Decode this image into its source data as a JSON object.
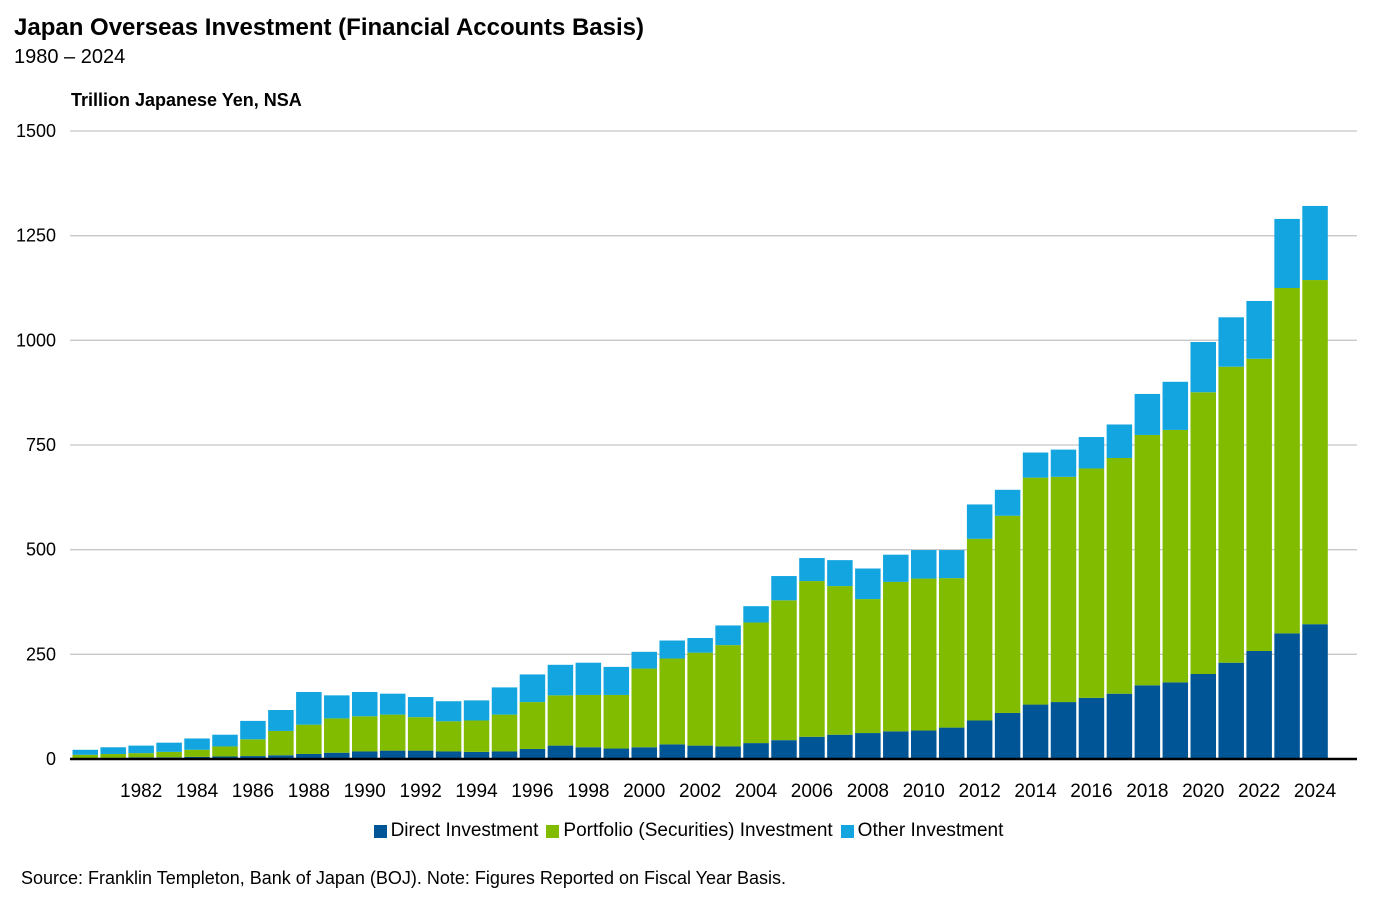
{
  "title": "Japan Overseas Investment (Financial Accounts Basis)",
  "subtitle": "1980 – 2024",
  "source": "Source: Franklin Templeton, Bank of Japan (BOJ). Note: Figures Reported on Fiscal Year Basis.",
  "colors": {
    "direct": "#005596",
    "portfolio": "#82BC00",
    "other": "#12A5DF"
  },
  "chart_data": {
    "type": "bar",
    "stacked": true,
    "title": "Japan Overseas Investment (Financial Accounts Basis)",
    "ylabel": "Trillion Japanese Yen, NSA",
    "xlabel": "",
    "ylim": [
      0,
      1500
    ],
    "yticks": [
      0,
      250,
      500,
      750,
      1000,
      1250,
      1500
    ],
    "grid": true,
    "legend": "bottom",
    "categories": [
      "1980",
      "1981",
      "1982",
      "1983",
      "1984",
      "1985",
      "1986",
      "1987",
      "1988",
      "1989",
      "1990",
      "1991",
      "1992",
      "1993",
      "1994",
      "1995",
      "1996",
      "1997",
      "1998",
      "1999",
      "2000",
      "2001",
      "2002",
      "2003",
      "2004",
      "2005",
      "2006",
      "2007",
      "2008",
      "2009",
      "2010",
      "2011",
      "2012",
      "2013",
      "2014",
      "2015",
      "2016",
      "2017",
      "2018",
      "2019",
      "2020",
      "2021",
      "2022",
      "2023",
      "2024"
    ],
    "xtick_labels": [
      "1982",
      "1984",
      "1986",
      "1988",
      "1990",
      "1992",
      "1994",
      "1996",
      "1998",
      "2000",
      "2002",
      "2004",
      "2006",
      "2008",
      "2010",
      "2012",
      "2014",
      "2016",
      "2018",
      "2020",
      "2022",
      "2024"
    ],
    "series": [
      {
        "name": "Direct Investment",
        "values": [
          2,
          3,
          4,
          4,
          5,
          6,
          7,
          9,
          12,
          15,
          18,
          20,
          20,
          18,
          17,
          18,
          24,
          32,
          28,
          25,
          28,
          35,
          32,
          30,
          38,
          45,
          53,
          58,
          62,
          66,
          68,
          75,
          92,
          110,
          130,
          136,
          146,
          156,
          176,
          183,
          203,
          230,
          258,
          300,
          322
        ]
      },
      {
        "name": "Portfolio (Securities) Investment",
        "values": [
          8,
          9,
          10,
          13,
          17,
          24,
          40,
          58,
          70,
          82,
          84,
          86,
          80,
          72,
          75,
          88,
          112,
          120,
          125,
          128,
          188,
          205,
          222,
          242,
          288,
          334,
          372,
          355,
          320,
          357,
          363,
          357,
          434,
          471,
          542,
          538,
          548,
          563,
          598,
          603,
          673,
          707,
          698,
          825,
          822
        ]
      },
      {
        "name": "Other Investment",
        "values": [
          12,
          16,
          18,
          22,
          27,
          28,
          44,
          50,
          78,
          55,
          58,
          50,
          48,
          48,
          48,
          65,
          66,
          73,
          77,
          67,
          40,
          43,
          35,
          47,
          39,
          58,
          55,
          62,
          73,
          65,
          68,
          67,
          82,
          62,
          60,
          65,
          75,
          80,
          98,
          115,
          120,
          118,
          138,
          165,
          177
        ]
      }
    ]
  }
}
